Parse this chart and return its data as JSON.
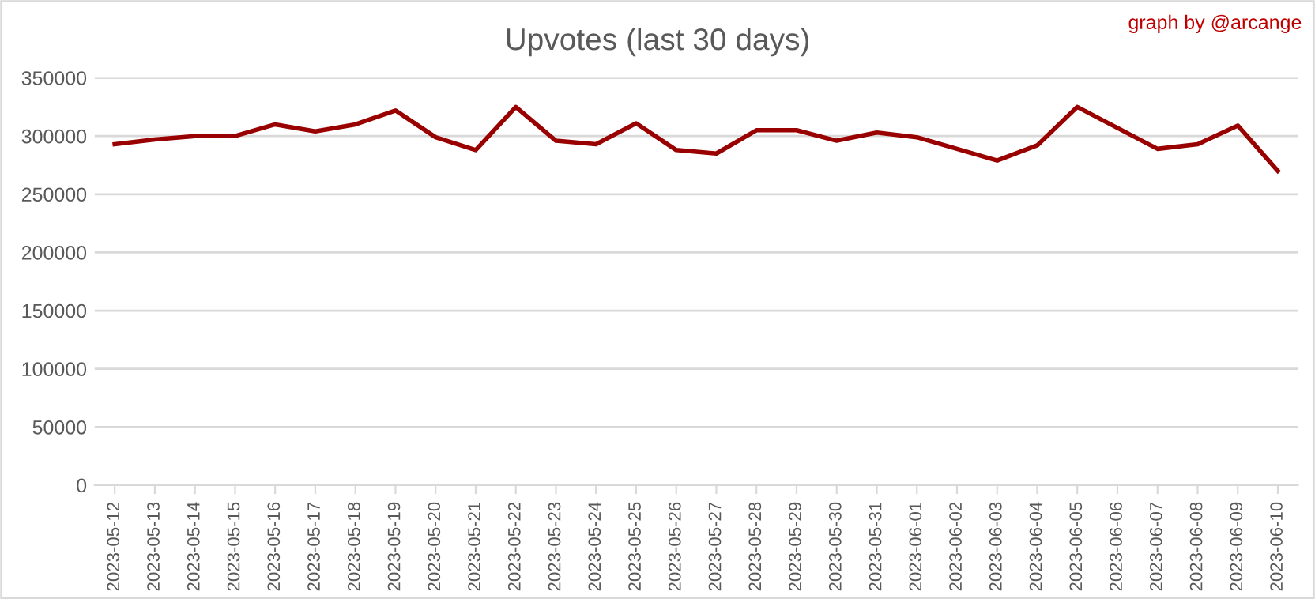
{
  "chart_data": {
    "type": "line",
    "title": "Upvotes (last 30 days)",
    "annotations": [
      "graph by @arcange"
    ],
    "categories": [
      "2023-05-12",
      "2023-05-13",
      "2023-05-14",
      "2023-05-15",
      "2023-05-16",
      "2023-05-17",
      "2023-05-18",
      "2023-05-19",
      "2023-05-20",
      "2023-05-21",
      "2023-05-22",
      "2023-05-23",
      "2023-05-24",
      "2023-05-25",
      "2023-05-26",
      "2023-05-27",
      "2023-05-28",
      "2023-05-29",
      "2023-05-30",
      "2023-05-31",
      "2023-06-01",
      "2023-06-02",
      "2023-06-03",
      "2023-06-04",
      "2023-06-05",
      "2023-06-06",
      "2023-06-07",
      "2023-06-08",
      "2023-06-09",
      "2023-06-10"
    ],
    "series": [
      {
        "color": "#990000",
        "values": [
          293000,
          297000,
          300000,
          300000,
          310000,
          304000,
          310000,
          322000,
          299000,
          288000,
          325000,
          296000,
          293000,
          311000,
          288000,
          285000,
          305000,
          305000,
          296000,
          303000,
          299000,
          289000,
          279000,
          292000,
          325000,
          307000,
          289000,
          293000,
          309000,
          270000
        ]
      }
    ],
    "ylim": [
      0,
      350000
    ],
    "yticks": [
      0,
      50000,
      100000,
      150000,
      200000,
      250000,
      300000,
      350000
    ],
    "grid": "y",
    "legend": false,
    "marker": "none",
    "line_style": "solid"
  }
}
